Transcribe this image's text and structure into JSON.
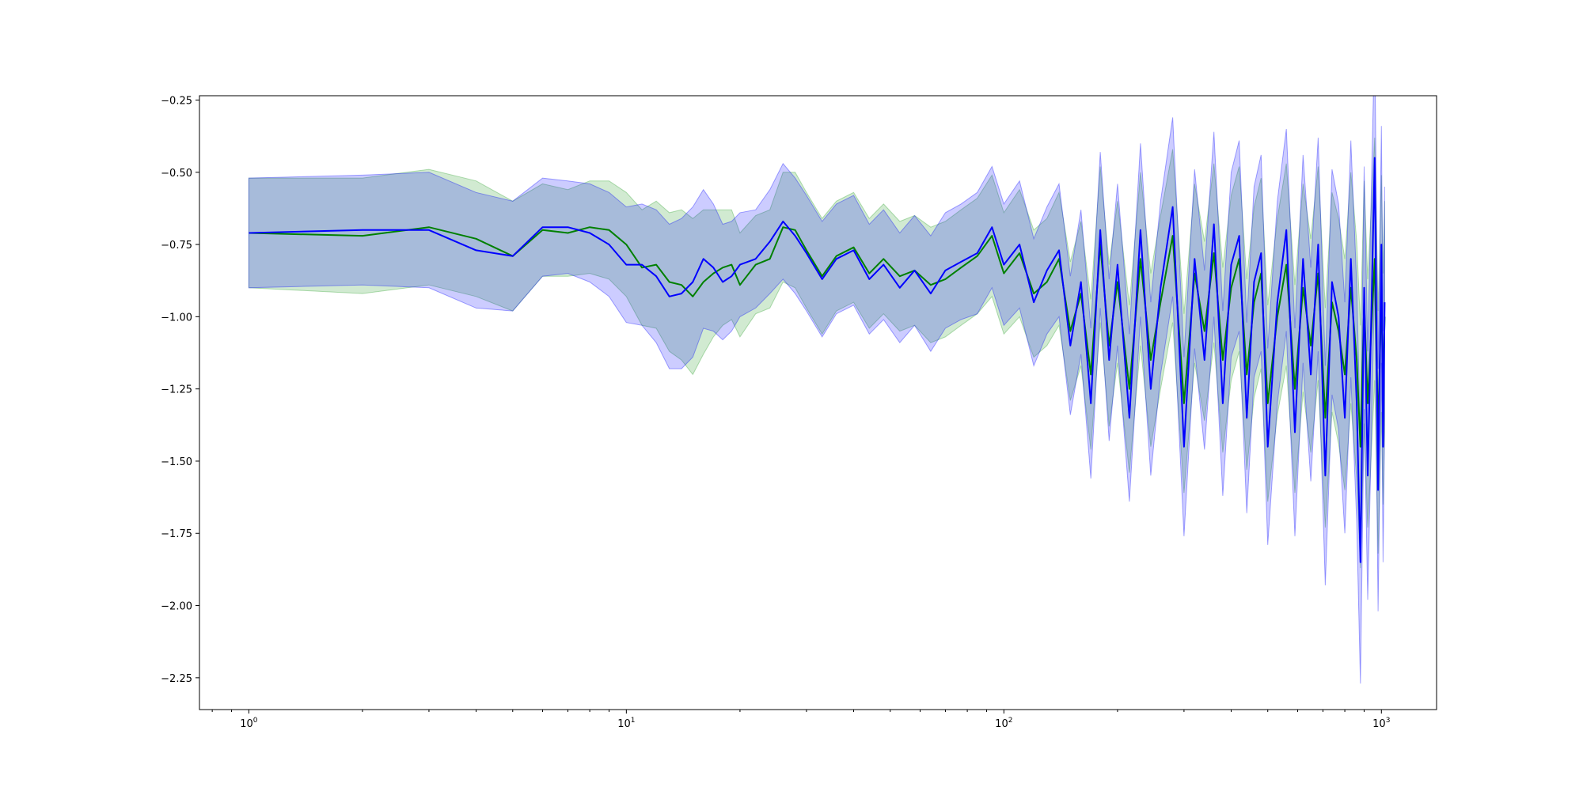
{
  "chart_data": {
    "type": "line",
    "title": "",
    "xlabel": "",
    "ylabel": "",
    "xscale": "log",
    "xlim": [
      0.74,
      1400
    ],
    "ylim": [
      -2.36,
      -0.235
    ],
    "grid": false,
    "legend": "none",
    "x_ticks": [
      {
        "value": 1,
        "base": "10",
        "exp": "0"
      },
      {
        "value": 10,
        "base": "10",
        "exp": "1"
      },
      {
        "value": 100,
        "base": "10",
        "exp": "2"
      },
      {
        "value": 1000,
        "base": "10",
        "exp": "3"
      }
    ],
    "y_ticks": [
      {
        "value": -0.25,
        "label": "−0.25"
      },
      {
        "value": -0.5,
        "label": "−0.50"
      },
      {
        "value": -0.75,
        "label": "−0.75"
      },
      {
        "value": -1.0,
        "label": "−1.00"
      },
      {
        "value": -1.25,
        "label": "−1.25"
      },
      {
        "value": -1.5,
        "label": "−1.50"
      },
      {
        "value": -1.75,
        "label": "−1.75"
      },
      {
        "value": -2.0,
        "label": "−2.00"
      },
      {
        "value": -2.25,
        "label": "−2.25"
      }
    ],
    "series": [
      {
        "color": "#008000",
        "band_color": "#2ca02c",
        "band_opacity": 0.22,
        "x": [
          1,
          2,
          3,
          4,
          5,
          6,
          7,
          8,
          9,
          10,
          11,
          12,
          13,
          14,
          15,
          16,
          17,
          18,
          19,
          20,
          22,
          24,
          26,
          28,
          30,
          33,
          36,
          40,
          44,
          48,
          53,
          58,
          64,
          70,
          77,
          85,
          93,
          100,
          110,
          120,
          130,
          140,
          150,
          160,
          170,
          180,
          190,
          200,
          215,
          230,
          245,
          260,
          280,
          300,
          320,
          340,
          360,
          380,
          400,
          420,
          440,
          460,
          480,
          500,
          530,
          560,
          590,
          620,
          650,
          680,
          710,
          740,
          770,
          800,
          830,
          860,
          880,
          900,
          920,
          940,
          960,
          980,
          1000,
          1010,
          1020
        ],
        "y": [
          -0.71,
          -0.72,
          -0.69,
          -0.73,
          -0.79,
          -0.7,
          -0.71,
          -0.69,
          -0.7,
          -0.75,
          -0.83,
          -0.82,
          -0.88,
          -0.89,
          -0.93,
          -0.88,
          -0.85,
          -0.83,
          -0.82,
          -0.89,
          -0.82,
          -0.8,
          -0.69,
          -0.7,
          -0.77,
          -0.86,
          -0.79,
          -0.76,
          -0.85,
          -0.8,
          -0.86,
          -0.84,
          -0.89,
          -0.87,
          -0.83,
          -0.79,
          -0.72,
          -0.85,
          -0.78,
          -0.92,
          -0.88,
          -0.8,
          -1.05,
          -0.92,
          -1.2,
          -0.75,
          -1.1,
          -0.88,
          -1.25,
          -0.8,
          -1.15,
          -0.95,
          -0.72,
          -1.3,
          -0.85,
          -1.05,
          -0.78,
          -1.15,
          -0.9,
          -0.8,
          -1.2,
          -0.95,
          -0.85,
          -1.3,
          -1.0,
          -0.82,
          -1.25,
          -0.9,
          -1.1,
          -0.85,
          -1.35,
          -0.95,
          -1.05,
          -1.2,
          -0.9,
          -1.15,
          -1.45,
          -0.95,
          -1.3,
          -1.05,
          -0.8,
          -1.4,
          -0.92,
          -1.25,
          -1.0
        ],
        "sd": [
          0.19,
          0.2,
          0.2,
          0.2,
          0.19,
          0.16,
          0.15,
          0.16,
          0.17,
          0.18,
          0.2,
          0.22,
          0.24,
          0.26,
          0.27,
          0.25,
          0.22,
          0.2,
          0.19,
          0.18,
          0.17,
          0.17,
          0.19,
          0.2,
          0.2,
          0.2,
          0.19,
          0.19,
          0.19,
          0.19,
          0.19,
          0.19,
          0.2,
          0.2,
          0.2,
          0.2,
          0.21,
          0.21,
          0.22,
          0.22,
          0.22,
          0.23,
          0.24,
          0.25,
          0.26,
          0.27,
          0.28,
          0.28,
          0.29,
          0.3,
          0.3,
          0.3,
          0.3,
          0.31,
          0.31,
          0.31,
          0.31,
          0.32,
          0.32,
          0.32,
          0.33,
          0.33,
          0.33,
          0.34,
          0.34,
          0.35,
          0.36,
          0.36,
          0.37,
          0.37,
          0.38,
          0.38,
          0.39,
          0.4,
          0.4,
          0.41,
          0.42,
          0.42,
          0.43,
          0.43,
          0.42,
          0.42,
          0.41,
          0.4,
          0.4
        ]
      },
      {
        "color": "#0000ff",
        "band_color": "#0000ff",
        "band_opacity": 0.2,
        "x": [
          1,
          2,
          3,
          4,
          5,
          6,
          7,
          8,
          9,
          10,
          11,
          12,
          13,
          14,
          15,
          16,
          17,
          18,
          19,
          20,
          22,
          24,
          26,
          28,
          30,
          33,
          36,
          40,
          44,
          48,
          53,
          58,
          64,
          70,
          77,
          85,
          93,
          100,
          110,
          120,
          130,
          140,
          150,
          160,
          170,
          180,
          190,
          200,
          215,
          230,
          245,
          260,
          280,
          300,
          320,
          340,
          360,
          380,
          400,
          420,
          440,
          460,
          480,
          500,
          530,
          560,
          590,
          620,
          650,
          680,
          710,
          740,
          770,
          800,
          830,
          860,
          880,
          900,
          920,
          940,
          960,
          980,
          1000,
          1010,
          1020
        ],
        "y": [
          -0.71,
          -0.7,
          -0.7,
          -0.77,
          -0.79,
          -0.69,
          -0.69,
          -0.71,
          -0.75,
          -0.82,
          -0.82,
          -0.86,
          -0.93,
          -0.92,
          -0.88,
          -0.8,
          -0.83,
          -0.88,
          -0.86,
          -0.82,
          -0.8,
          -0.74,
          -0.67,
          -0.72,
          -0.78,
          -0.87,
          -0.8,
          -0.77,
          -0.87,
          -0.82,
          -0.9,
          -0.84,
          -0.92,
          -0.84,
          -0.81,
          -0.78,
          -0.69,
          -0.82,
          -0.75,
          -0.95,
          -0.84,
          -0.77,
          -1.1,
          -0.88,
          -1.3,
          -0.7,
          -1.15,
          -0.82,
          -1.35,
          -0.7,
          -1.25,
          -0.9,
          -0.62,
          -1.45,
          -0.8,
          -1.15,
          -0.68,
          -1.3,
          -0.82,
          -0.72,
          -1.35,
          -0.88,
          -0.78,
          -1.45,
          -0.95,
          -0.7,
          -1.4,
          -0.8,
          -1.2,
          -0.75,
          -1.55,
          -0.88,
          -1.0,
          -1.35,
          -0.8,
          -1.3,
          -1.85,
          -0.9,
          -1.55,
          -1.0,
          -0.45,
          -1.6,
          -0.75,
          -1.45,
          -0.95
        ],
        "sd": [
          0.19,
          0.19,
          0.2,
          0.2,
          0.19,
          0.17,
          0.16,
          0.17,
          0.18,
          0.2,
          0.21,
          0.23,
          0.25,
          0.26,
          0.26,
          0.24,
          0.22,
          0.2,
          0.19,
          0.18,
          0.17,
          0.18,
          0.2,
          0.2,
          0.2,
          0.2,
          0.19,
          0.19,
          0.19,
          0.19,
          0.19,
          0.19,
          0.2,
          0.2,
          0.2,
          0.21,
          0.21,
          0.21,
          0.22,
          0.22,
          0.22,
          0.23,
          0.24,
          0.25,
          0.26,
          0.27,
          0.28,
          0.28,
          0.29,
          0.3,
          0.3,
          0.3,
          0.31,
          0.31,
          0.31,
          0.31,
          0.32,
          0.32,
          0.32,
          0.33,
          0.33,
          0.33,
          0.34,
          0.34,
          0.35,
          0.35,
          0.36,
          0.36,
          0.37,
          0.37,
          0.38,
          0.39,
          0.39,
          0.4,
          0.41,
          0.41,
          0.42,
          0.42,
          0.43,
          0.43,
          0.42,
          0.42,
          0.41,
          0.4,
          0.4
        ]
      }
    ]
  }
}
